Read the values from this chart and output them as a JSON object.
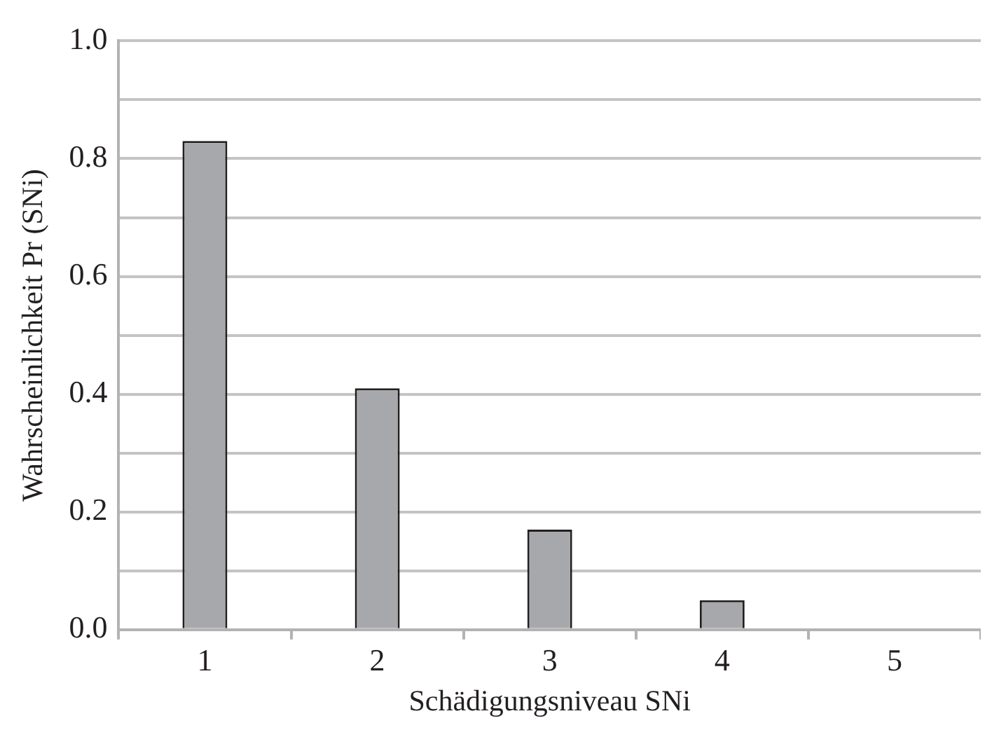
{
  "chart_data": {
    "type": "bar",
    "xlabel": "Schädigungsniveau SNi",
    "ylabel": "Wahrscheinlichkeit Pr (SNi)",
    "categories": [
      "1",
      "2",
      "3",
      "4",
      "5"
    ],
    "values": [
      0.83,
      0.41,
      0.17,
      0.05,
      0
    ],
    "color": "#a7a8ab",
    "ylim": [
      0,
      1
    ],
    "yticks": [
      {
        "value": 0,
        "label": "0.0"
      },
      {
        "value": 0.1,
        "label": null
      },
      {
        "value": 0.2,
        "label": "0.2"
      },
      {
        "value": 0.3,
        "label": null
      },
      {
        "value": 0.4,
        "label": "0.4"
      },
      {
        "value": 0.5,
        "label": null
      },
      {
        "value": 0.6,
        "label": "0.6"
      },
      {
        "value": 0.7,
        "label": null
      },
      {
        "value": 0.8,
        "label": "0.8"
      },
      {
        "value": 0.9,
        "label": null
      },
      {
        "value": 1,
        "label": "1.0"
      }
    ],
    "grid": "y",
    "legend": false
  }
}
